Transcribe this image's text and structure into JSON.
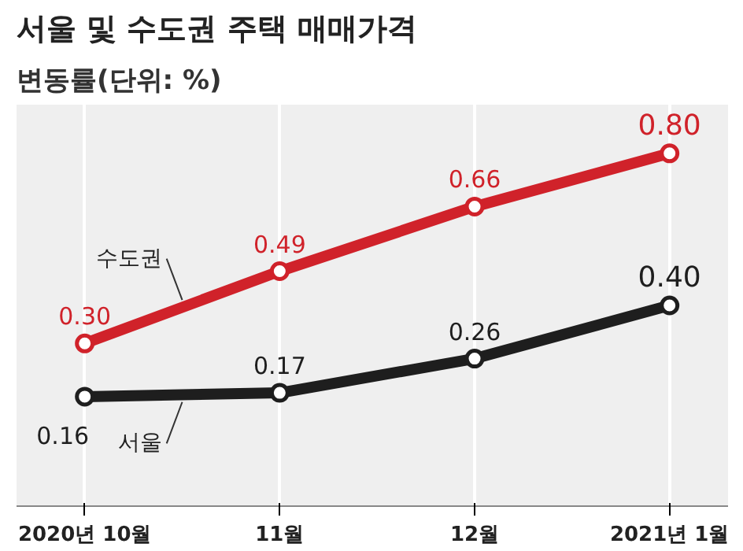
{
  "chart_data": {
    "type": "line",
    "title": "서울 및 수도권 주택 매매가격",
    "subtitle": "변동률(단위: %)",
    "categories": [
      "2020년 10월",
      "11월",
      "12월",
      "2021년 1월"
    ],
    "series": [
      {
        "name": "수도권",
        "color": "#d0222a",
        "values": [
          0.3,
          0.49,
          0.66,
          0.8
        ],
        "value_labels": [
          "0.30",
          "0.49",
          "0.66",
          "0.80"
        ]
      },
      {
        "name": "서울",
        "color": "#1e1e1e",
        "values": [
          0.16,
          0.17,
          0.26,
          0.4
        ],
        "value_labels": [
          "0.16",
          "0.17",
          "0.26",
          "0.40"
        ]
      }
    ],
    "grid": "x",
    "marker": "circle",
    "line_style": "solid",
    "legend": false
  }
}
